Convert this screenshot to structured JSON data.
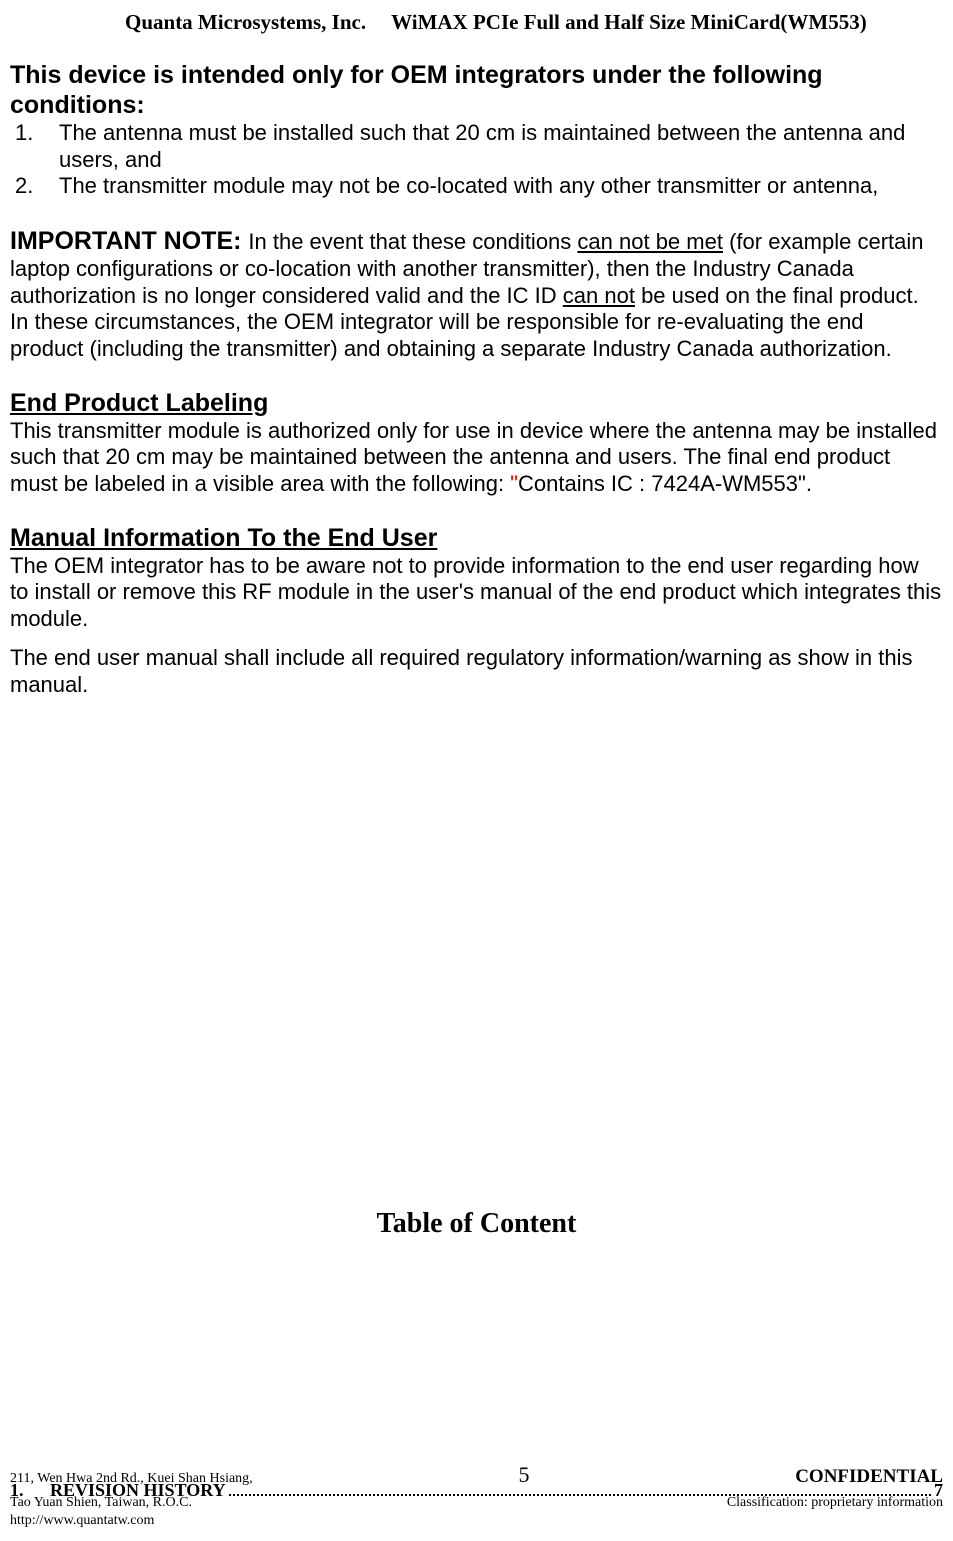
{
  "header": {
    "company": "Quanta Microsystems, Inc.",
    "product": "WiMAX PCIe Full and Half Size MiniCard(WM553)"
  },
  "section1": {
    "title": "This device is intended only for OEM integrators under the following conditions:",
    "item1_num": "1.",
    "item1": "The antenna must be installed such that 20 cm is maintained between the antenna and users, and",
    "item2_num": "2.",
    "item2": "The transmitter module may not be co-located with any other transmitter or antenna,"
  },
  "section2": {
    "title": "IMPORTANT NOTE: ",
    "text_begin": "In the event that these conditions ",
    "u1": "can not be met",
    "text_mid1": " (for example certain laptop configurations or co-location with another transmitter), then the Industry Canada authorization is no longer considered valid and the IC ID ",
    "u2": "can not",
    "text_end": " be used on the final product. In these circumstances, the OEM integrator will be responsible for re-evaluating the end product (including the transmitter) and obtaining a separate Industry Canada authorization."
  },
  "section3": {
    "title": "End Product Labeling",
    "text_begin": "This transmitter module is authorized only for use in device where the antenna may be installed such that 20 cm may be maintained between the antenna and users. The final end product must be labeled in a visible area with the following: ",
    "quote_open": "\"",
    "quote_body": "Contains IC : 7424A-WM553",
    "quote_close": "\".",
    "period": ""
  },
  "section4": {
    "title": "Manual Information To the End User",
    "para1": "The OEM integrator has to be aware not to provide information to the end user regarding how to install or remove this RF module in the user's manual of the end product which integrates this module.",
    "para2": "The end user manual shall include all required regulatory information/warning as show in this manual."
  },
  "toc": {
    "title": "Table of Content",
    "entry_num": "1.",
    "entry_label": "REVISION HISTORY",
    "entry_page": "7"
  },
  "footer": {
    "address1": "211, Wen Hwa 2nd Rd., Kuei Shan Hsiang,",
    "address2": "Tao Yuan Shien, Taiwan, R.O.C.",
    "url": "http://www.quantatw.com",
    "page_number": "5",
    "confidential": "CONFIDENTIAL",
    "classification": "Classification: proprietary information"
  }
}
